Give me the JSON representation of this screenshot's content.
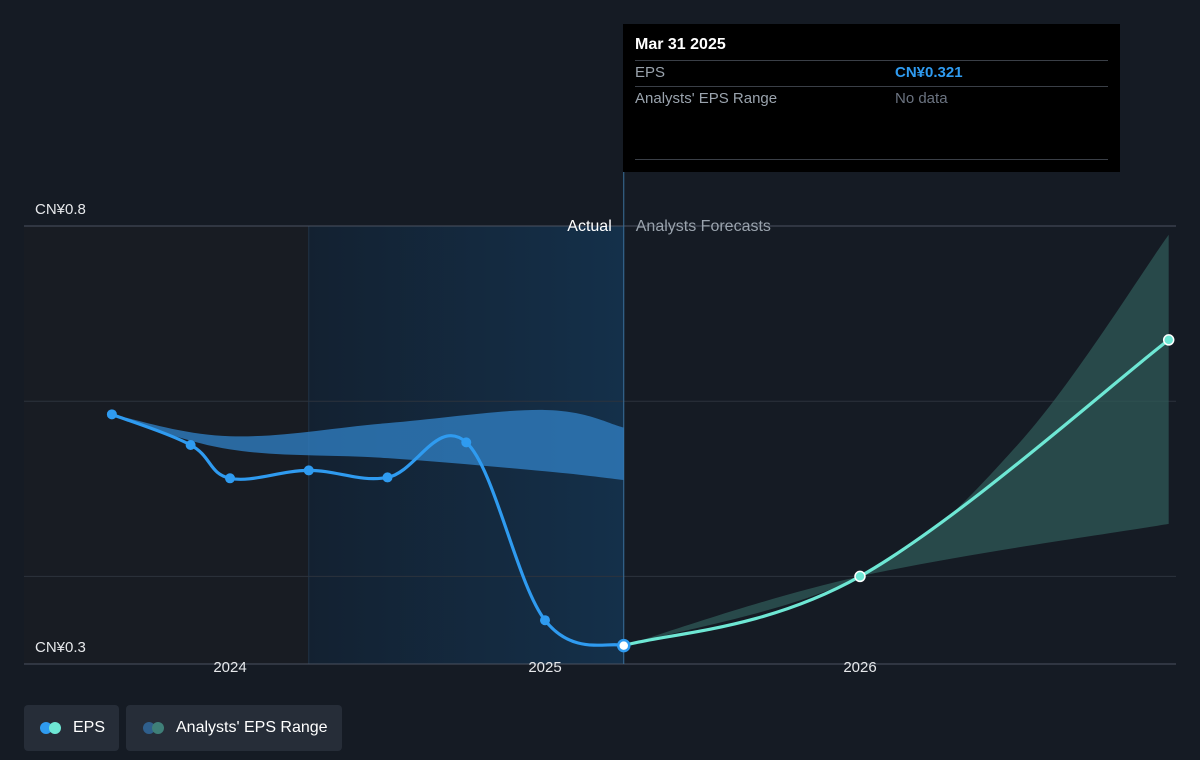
{
  "tooltip": {
    "date": "Mar 31 2025",
    "rows": [
      {
        "label": "EPS",
        "value": "CN¥0.321"
      },
      {
        "label": "Analysts' EPS Range",
        "value": "No data"
      }
    ]
  },
  "regions": {
    "actual_label": "Actual",
    "forecast_label": "Analysts Forecasts"
  },
  "legend": {
    "eps_label": "EPS",
    "range_label": "Analysts' EPS Range"
  },
  "colors": {
    "background": "#151b24",
    "eps_actual": "#2f9bf0",
    "eps_forecast": "#6ee7d4",
    "range_actual": "#2f7dbf",
    "range_forecast": "#2f5a57",
    "highlight_band": "#13283c",
    "past_band": "#181c23"
  },
  "chart_data": {
    "type": "line",
    "y_axis": {
      "min": 0.3,
      "max": 0.8,
      "unit_prefix": "CN¥",
      "tick_labels": [
        {
          "value": 0.8,
          "label": "CN¥0.8"
        },
        {
          "value": 0.3,
          "label": "CN¥0.3"
        }
      ],
      "gridlines": [
        0.8,
        0.6,
        0.4
      ]
    },
    "x_axis": {
      "min": 2023.45,
      "max": 2026.98,
      "ticks": [
        {
          "value": 2024,
          "label": "2024"
        },
        {
          "value": 2025,
          "label": "2025"
        },
        {
          "value": 2026,
          "label": "2026"
        }
      ]
    },
    "divider_x": 2025.25,
    "highlight_start_x": 2024.25,
    "series": [
      {
        "name": "EPS",
        "role": "actual",
        "points": [
          {
            "x": 2023.625,
            "y": 0.585
          },
          {
            "x": 2023.875,
            "y": 0.55
          },
          {
            "x": 2024.0,
            "y": 0.512
          },
          {
            "x": 2024.25,
            "y": 0.521
          },
          {
            "x": 2024.5,
            "y": 0.513
          },
          {
            "x": 2024.75,
            "y": 0.553
          },
          {
            "x": 2025.0,
            "y": 0.35
          },
          {
            "x": 2025.25,
            "y": 0.321
          }
        ]
      },
      {
        "name": "EPS",
        "role": "forecast",
        "points": [
          {
            "x": 2025.25,
            "y": 0.321
          },
          {
            "x": 2026.0,
            "y": 0.4
          },
          {
            "x": 2026.98,
            "y": 0.67
          }
        ]
      },
      {
        "name": "Analysts' EPS Range",
        "role": "range_actual",
        "upper": [
          {
            "x": 2023.625,
            "y": 0.585
          },
          {
            "x": 2024.0,
            "y": 0.56
          },
          {
            "x": 2024.5,
            "y": 0.575
          },
          {
            "x": 2025.0,
            "y": 0.59
          },
          {
            "x": 2025.25,
            "y": 0.57
          }
        ],
        "lower": [
          {
            "x": 2023.625,
            "y": 0.585
          },
          {
            "x": 2024.0,
            "y": 0.545
          },
          {
            "x": 2024.5,
            "y": 0.535
          },
          {
            "x": 2025.0,
            "y": 0.52
          },
          {
            "x": 2025.25,
            "y": 0.51
          }
        ]
      },
      {
        "name": "Analysts' EPS Range",
        "role": "range_forecast",
        "upper": [
          {
            "x": 2025.25,
            "y": 0.321
          },
          {
            "x": 2026.0,
            "y": 0.4
          },
          {
            "x": 2026.5,
            "y": 0.55
          },
          {
            "x": 2026.98,
            "y": 0.79
          }
        ],
        "lower": [
          {
            "x": 2025.25,
            "y": 0.321
          },
          {
            "x": 2026.0,
            "y": 0.4
          },
          {
            "x": 2026.98,
            "y": 0.46
          }
        ]
      }
    ]
  }
}
